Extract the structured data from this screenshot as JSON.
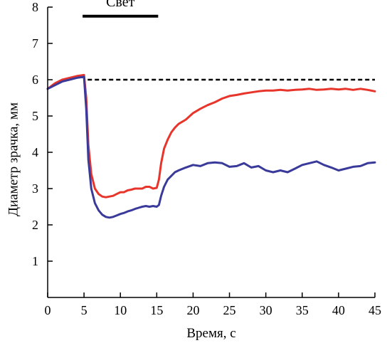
{
  "chart_data": {
    "type": "line",
    "title": "",
    "xlabel": "Время, с",
    "ylabel": "Диаметр зрачка, мм",
    "xlim": [
      0,
      45
    ],
    "ylim": [
      0,
      8
    ],
    "xticks": [
      0,
      5,
      10,
      15,
      20,
      25,
      30,
      35,
      40,
      45
    ],
    "yticks": [
      1,
      2,
      3,
      4,
      5,
      6,
      7,
      8
    ],
    "grid": false,
    "legend": "none",
    "annotations": [
      {
        "type": "bar",
        "label": "Свет",
        "x_start": 5,
        "x_end": 15,
        "y": 7.75,
        "color": "#000000"
      },
      {
        "type": "hline",
        "style": "dashed",
        "y": 6.0,
        "x_start": 5.5,
        "x_end": 45,
        "color": "#000000"
      }
    ],
    "series": [
      {
        "color": "#e8352b",
        "x": [
          0,
          1,
          2,
          3,
          4,
          5,
          5.3,
          5.6,
          6,
          6.5,
          7,
          7.5,
          8,
          8.5,
          9,
          9.5,
          10,
          10.5,
          11,
          11.5,
          12,
          12.5,
          13,
          13.5,
          14,
          14.5,
          15,
          15.3,
          15.6,
          16,
          16.5,
          17,
          17.5,
          18,
          19,
          20,
          21,
          22,
          23,
          24,
          25,
          26,
          27,
          28,
          29,
          30,
          31,
          32,
          33,
          34,
          35,
          36,
          37,
          38,
          39,
          40,
          41,
          42,
          43,
          44,
          45
        ],
        "values": [
          5.75,
          5.9,
          6.0,
          6.05,
          6.1,
          6.13,
          5.5,
          4.2,
          3.4,
          3.0,
          2.85,
          2.78,
          2.76,
          2.78,
          2.8,
          2.85,
          2.9,
          2.9,
          2.95,
          2.97,
          3.0,
          3.0,
          3.0,
          3.05,
          3.05,
          3.0,
          3.02,
          3.25,
          3.7,
          4.1,
          4.35,
          4.55,
          4.68,
          4.78,
          4.9,
          5.08,
          5.2,
          5.3,
          5.38,
          5.48,
          5.55,
          5.58,
          5.62,
          5.65,
          5.68,
          5.7,
          5.7,
          5.72,
          5.7,
          5.72,
          5.73,
          5.75,
          5.72,
          5.73,
          5.75,
          5.73,
          5.75,
          5.72,
          5.75,
          5.72,
          5.68
        ]
      },
      {
        "color": "#3a3a9a",
        "x": [
          0,
          1,
          2,
          3,
          4,
          5,
          5.3,
          5.6,
          6,
          6.5,
          7,
          7.5,
          8,
          8.5,
          9,
          9.5,
          10,
          10.5,
          11,
          11.5,
          12,
          12.5,
          13,
          13.5,
          14,
          14.5,
          15,
          15.3,
          15.6,
          16,
          16.5,
          17,
          17.5,
          18,
          19,
          20,
          21,
          22,
          23,
          24,
          25,
          26,
          27,
          28,
          29,
          30,
          31,
          32,
          33,
          34,
          35,
          36,
          37,
          38,
          39,
          40,
          41,
          42,
          43,
          44,
          45
        ],
        "values": [
          5.75,
          5.85,
          5.95,
          6.0,
          6.05,
          6.08,
          5.2,
          3.8,
          3.0,
          2.6,
          2.4,
          2.28,
          2.22,
          2.2,
          2.22,
          2.26,
          2.3,
          2.33,
          2.37,
          2.4,
          2.44,
          2.47,
          2.5,
          2.52,
          2.5,
          2.52,
          2.5,
          2.55,
          2.8,
          3.05,
          3.25,
          3.35,
          3.45,
          3.5,
          3.58,
          3.65,
          3.62,
          3.7,
          3.72,
          3.7,
          3.6,
          3.62,
          3.7,
          3.58,
          3.62,
          3.5,
          3.45,
          3.5,
          3.45,
          3.55,
          3.65,
          3.7,
          3.75,
          3.65,
          3.58,
          3.5,
          3.55,
          3.6,
          3.62,
          3.7,
          3.72
        ]
      }
    ]
  }
}
